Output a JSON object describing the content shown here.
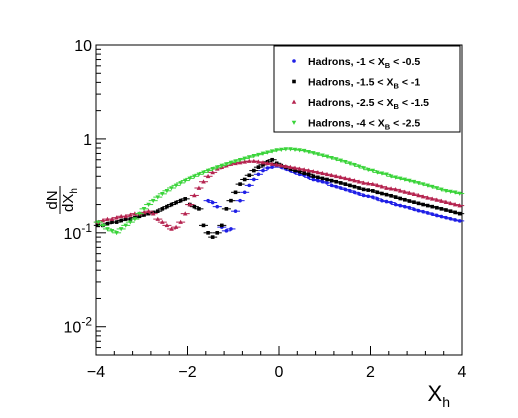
{
  "chart_data": {
    "type": "scatter",
    "title": "",
    "xlabel": "X_h",
    "ylabel": "dN/dX_h",
    "xlim": [
      -4,
      4
    ],
    "ylim": [
      0.005,
      10
    ],
    "yscale": "log",
    "x_ticks": [
      -4,
      -2,
      0,
      2,
      4
    ],
    "y_ticks": [
      {
        "value": 0.01,
        "base": "10",
        "exp": "-2"
      },
      {
        "value": 0.1,
        "base": "10",
        "exp": "-1"
      },
      {
        "value": 1,
        "base": "1",
        "exp": ""
      },
      {
        "value": 10,
        "base": "10",
        "exp": ""
      }
    ],
    "legend_position": "top-right",
    "grid": false,
    "series": [
      {
        "name": "Hadrons, -1 < X_B < -0.5",
        "legend": {
          "prefix": "Hadrons, -1 < X",
          "sub": "B",
          "suffix": " < -0.5"
        },
        "color": "#1f1fe6",
        "marker": "circle",
        "x": [
          -1.55,
          -1.45,
          -1.35,
          -1.25,
          -1.15,
          -1.05,
          -0.95,
          -0.85,
          -0.75,
          -0.65,
          -0.55,
          -0.45,
          -0.35,
          -0.25,
          -0.15,
          -0.05,
          0.05,
          0.15,
          0.25,
          0.35,
          0.45,
          0.55,
          0.65,
          0.75,
          0.85,
          0.95,
          1.05,
          1.15,
          1.25,
          1.35,
          1.45,
          1.55,
          1.65,
          1.75,
          1.85,
          1.95,
          2.05,
          2.15,
          2.25,
          2.35,
          2.45,
          2.55,
          2.65,
          2.75,
          2.85,
          2.95,
          3.05,
          3.15,
          3.25,
          3.35,
          3.45,
          3.55,
          3.65,
          3.75,
          3.85,
          3.95
        ],
        "y": [
          0.22,
          0.21,
          0.19,
          0.115,
          0.105,
          0.11,
          0.17,
          0.22,
          0.27,
          0.32,
          0.37,
          0.42,
          0.46,
          0.49,
          0.5,
          0.52,
          0.5,
          0.48,
          0.46,
          0.44,
          0.42,
          0.41,
          0.39,
          0.37,
          0.36,
          0.35,
          0.34,
          0.32,
          0.31,
          0.3,
          0.29,
          0.28,
          0.27,
          0.26,
          0.25,
          0.245,
          0.24,
          0.23,
          0.22,
          0.215,
          0.21,
          0.2,
          0.195,
          0.19,
          0.185,
          0.178,
          0.172,
          0.168,
          0.163,
          0.158,
          0.153,
          0.149,
          0.145,
          0.141,
          0.137,
          0.134
        ]
      },
      {
        "name": "Hadrons, -1.5 < X_B < -1",
        "legend": {
          "prefix": "Hadrons, -1.5 < X",
          "sub": "B",
          "suffix": " < -1"
        },
        "color": "#000000",
        "marker": "square",
        "x": [
          -3.95,
          -3.85,
          -3.75,
          -3.65,
          -3.55,
          -3.45,
          -3.35,
          -3.25,
          -3.15,
          -3.05,
          -2.95,
          -2.85,
          -2.75,
          -2.65,
          -2.55,
          -2.45,
          -2.35,
          -2.25,
          -2.15,
          -2.05,
          -1.95,
          -1.85,
          -1.75,
          -1.65,
          -1.55,
          -1.45,
          -1.35,
          -1.25,
          -1.15,
          -1.05,
          -0.95,
          -0.85,
          -0.75,
          -0.65,
          -0.55,
          -0.45,
          -0.35,
          -0.25,
          -0.15,
          -0.05,
          0.05,
          0.15,
          0.25,
          0.35,
          0.45,
          0.55,
          0.65,
          0.75,
          0.85,
          0.95,
          1.05,
          1.15,
          1.25,
          1.35,
          1.45,
          1.55,
          1.65,
          1.75,
          1.85,
          1.95,
          2.05,
          2.15,
          2.25,
          2.35,
          2.45,
          2.55,
          2.65,
          2.75,
          2.85,
          2.95,
          3.05,
          3.15,
          3.25,
          3.35,
          3.45,
          3.55,
          3.65,
          3.75,
          3.85,
          3.95
        ],
        "y": [
          0.12,
          0.12,
          0.125,
          0.13,
          0.13,
          0.135,
          0.14,
          0.14,
          0.145,
          0.15,
          0.155,
          0.16,
          0.165,
          0.17,
          0.18,
          0.19,
          0.2,
          0.21,
          0.22,
          0.23,
          0.2,
          0.19,
          0.18,
          0.12,
          0.1,
          0.09,
          0.1,
          0.12,
          0.18,
          0.22,
          0.27,
          0.33,
          0.37,
          0.41,
          0.46,
          0.5,
          0.53,
          0.57,
          0.6,
          0.55,
          0.52,
          0.5,
          0.48,
          0.46,
          0.45,
          0.43,
          0.42,
          0.4,
          0.39,
          0.38,
          0.37,
          0.36,
          0.35,
          0.34,
          0.33,
          0.32,
          0.31,
          0.3,
          0.29,
          0.285,
          0.28,
          0.27,
          0.262,
          0.255,
          0.248,
          0.24,
          0.232,
          0.225,
          0.218,
          0.212,
          0.206,
          0.2,
          0.195,
          0.19,
          0.185,
          0.18,
          0.175,
          0.17,
          0.165,
          0.16
        ]
      },
      {
        "name": "Hadrons, -2.5 < X_B < -1.5",
        "legend": {
          "prefix": "Hadrons, -2.5 < X",
          "sub": "B",
          "suffix": " < -1.5"
        },
        "color": "#b5234f",
        "marker": "triangle",
        "x": [
          -3.95,
          -3.85,
          -3.75,
          -3.65,
          -3.55,
          -3.45,
          -3.35,
          -3.25,
          -3.15,
          -3.05,
          -2.95,
          -2.85,
          -2.75,
          -2.65,
          -2.55,
          -2.45,
          -2.35,
          -2.25,
          -2.15,
          -2.05,
          -1.95,
          -1.85,
          -1.75,
          -1.65,
          -1.55,
          -1.45,
          -1.35,
          -1.25,
          -1.15,
          -1.05,
          -0.95,
          -0.85,
          -0.75,
          -0.65,
          -0.55,
          -0.45,
          -0.35,
          -0.25,
          -0.15,
          -0.05,
          0.05,
          0.15,
          0.25,
          0.35,
          0.45,
          0.55,
          0.65,
          0.75,
          0.85,
          0.95,
          1.05,
          1.15,
          1.25,
          1.35,
          1.45,
          1.55,
          1.65,
          1.75,
          1.85,
          1.95,
          2.05,
          2.15,
          2.25,
          2.35,
          2.45,
          2.55,
          2.65,
          2.75,
          2.85,
          2.95,
          3.05,
          3.15,
          3.25,
          3.35,
          3.45,
          3.55,
          3.65,
          3.75,
          3.85,
          3.95
        ],
        "y": [
          0.13,
          0.135,
          0.14,
          0.14,
          0.145,
          0.15,
          0.15,
          0.155,
          0.16,
          0.16,
          0.165,
          0.17,
          0.16,
          0.14,
          0.13,
          0.12,
          0.11,
          0.115,
          0.13,
          0.16,
          0.2,
          0.25,
          0.3,
          0.35,
          0.4,
          0.44,
          0.48,
          0.5,
          0.52,
          0.54,
          0.55,
          0.56,
          0.57,
          0.58,
          0.58,
          0.57,
          0.56,
          0.55,
          0.54,
          0.53,
          0.52,
          0.51,
          0.5,
          0.49,
          0.48,
          0.47,
          0.46,
          0.45,
          0.44,
          0.43,
          0.42,
          0.41,
          0.4,
          0.39,
          0.38,
          0.37,
          0.36,
          0.35,
          0.34,
          0.335,
          0.33,
          0.32,
          0.31,
          0.3,
          0.295,
          0.29,
          0.28,
          0.272,
          0.265,
          0.258,
          0.25,
          0.243,
          0.236,
          0.23,
          0.224,
          0.218,
          0.212,
          0.206,
          0.2,
          0.195
        ]
      },
      {
        "name": "Hadrons, -4 < X_B < -2.5",
        "legend": {
          "prefix": "Hadrons, -4 < X",
          "sub": "B",
          "suffix": " < -2.5"
        },
        "color": "#3ad43a",
        "marker": "triangle-down",
        "x": [
          -3.95,
          -3.85,
          -3.75,
          -3.65,
          -3.55,
          -3.45,
          -3.35,
          -3.25,
          -3.15,
          -3.05,
          -2.95,
          -2.85,
          -2.75,
          -2.65,
          -2.55,
          -2.45,
          -2.35,
          -2.25,
          -2.15,
          -2.05,
          -1.95,
          -1.85,
          -1.75,
          -1.65,
          -1.55,
          -1.45,
          -1.35,
          -1.25,
          -1.15,
          -1.05,
          -0.95,
          -0.85,
          -0.75,
          -0.65,
          -0.55,
          -0.45,
          -0.35,
          -0.25,
          -0.15,
          -0.05,
          0.05,
          0.15,
          0.25,
          0.35,
          0.45,
          0.55,
          0.65,
          0.75,
          0.85,
          0.95,
          1.05,
          1.15,
          1.25,
          1.35,
          1.45,
          1.55,
          1.65,
          1.75,
          1.85,
          1.95,
          2.05,
          2.15,
          2.25,
          2.35,
          2.45,
          2.55,
          2.65,
          2.75,
          2.85,
          2.95,
          3.05,
          3.15,
          3.25,
          3.35,
          3.45,
          3.55,
          3.65,
          3.75,
          3.85,
          3.95
        ],
        "y": [
          0.13,
          0.12,
          0.11,
          0.105,
          0.1,
          0.11,
          0.12,
          0.13,
          0.14,
          0.16,
          0.18,
          0.2,
          0.22,
          0.24,
          0.26,
          0.28,
          0.3,
          0.32,
          0.34,
          0.36,
          0.38,
          0.4,
          0.42,
          0.44,
          0.46,
          0.48,
          0.5,
          0.52,
          0.54,
          0.56,
          0.58,
          0.6,
          0.62,
          0.64,
          0.66,
          0.68,
          0.7,
          0.72,
          0.74,
          0.76,
          0.77,
          0.78,
          0.78,
          0.77,
          0.76,
          0.75,
          0.73,
          0.71,
          0.69,
          0.67,
          0.65,
          0.63,
          0.61,
          0.59,
          0.57,
          0.55,
          0.53,
          0.51,
          0.49,
          0.47,
          0.46,
          0.44,
          0.43,
          0.42,
          0.4,
          0.39,
          0.38,
          0.37,
          0.36,
          0.35,
          0.34,
          0.33,
          0.32,
          0.31,
          0.3,
          0.29,
          0.28,
          0.275,
          0.27,
          0.262
        ]
      }
    ]
  }
}
